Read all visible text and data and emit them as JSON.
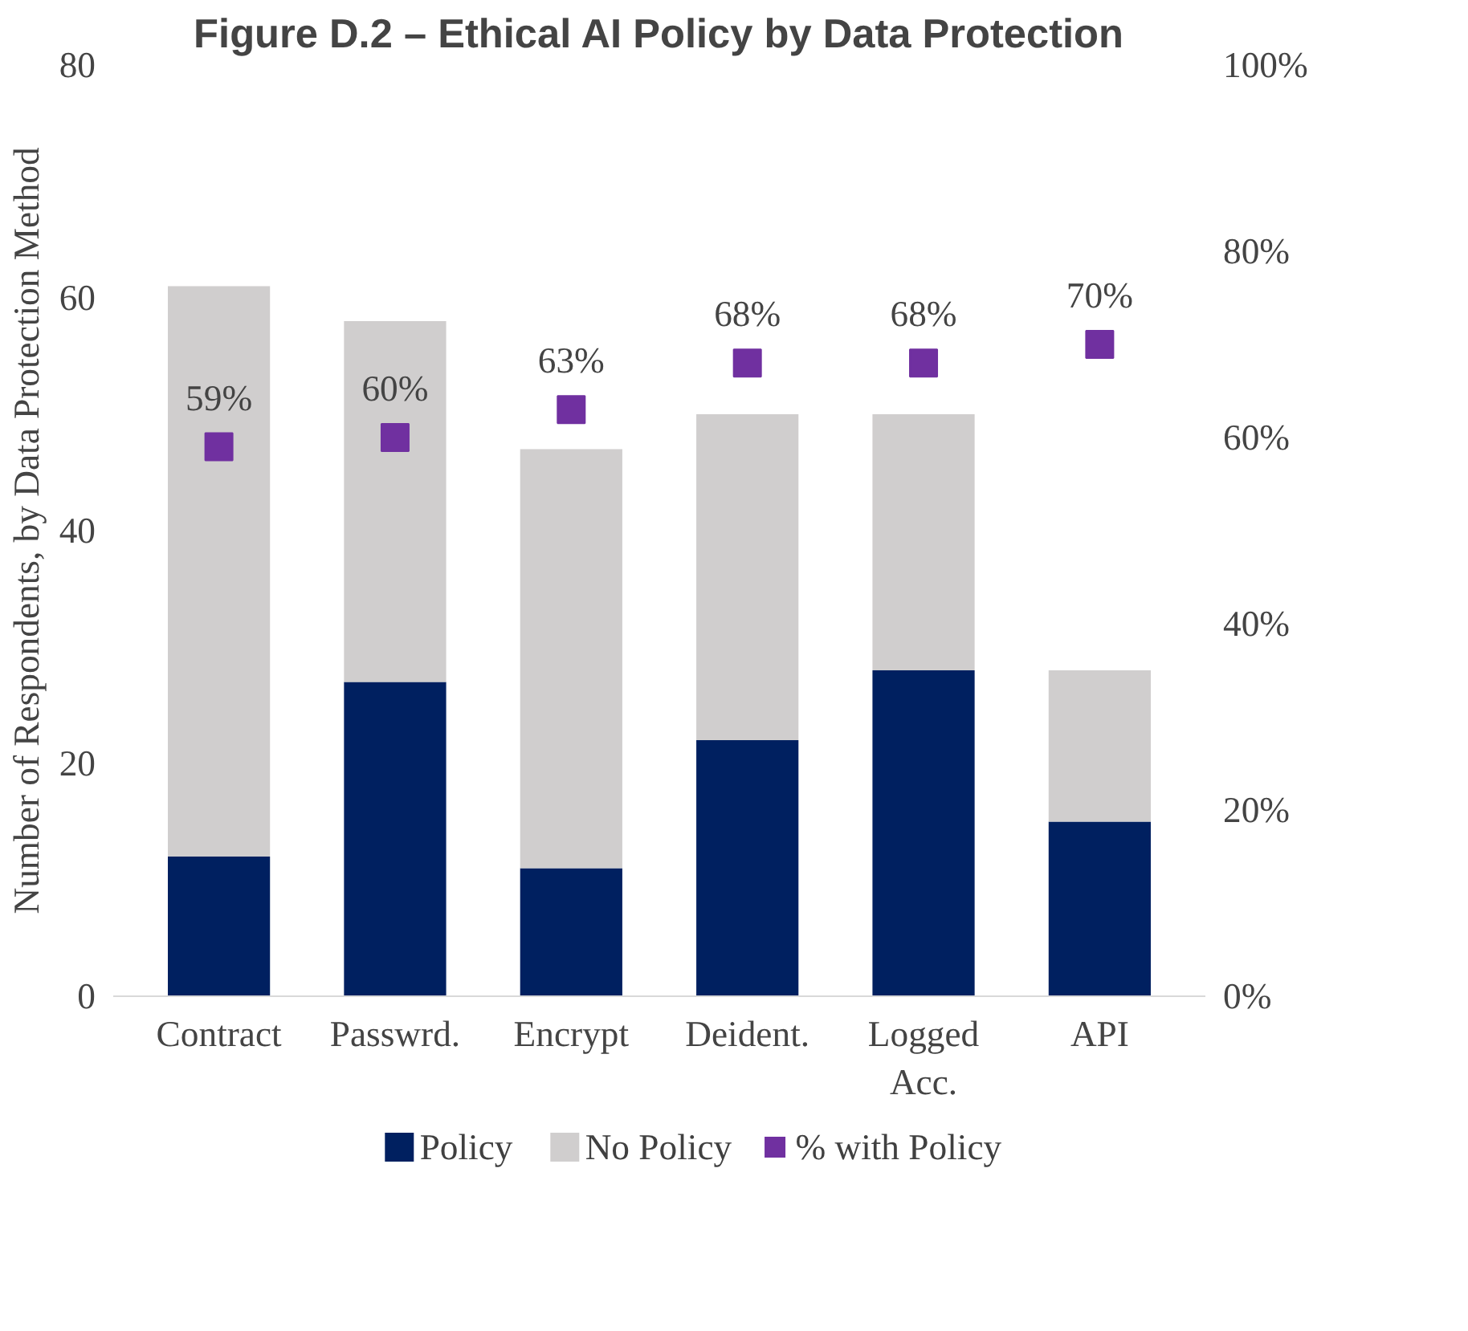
{
  "chart_data": {
    "type": "bar",
    "title": "Figure D.2 – Ethical AI Policy by Data Protection",
    "ylabel": "Number of Respondents, by Data Protection Method",
    "categories": [
      "Contract",
      "Passwrd.",
      "Encrypt",
      "Deident.",
      "Logged Acc.",
      "API"
    ],
    "stacked": true,
    "series": [
      {
        "name": "Policy",
        "color": "#002060",
        "values": [
          12,
          27,
          11,
          22,
          28,
          15
        ]
      },
      {
        "name": "No Policy",
        "color": "#d0cece",
        "values": [
          49,
          31,
          36,
          28,
          22,
          13
        ]
      },
      {
        "name": "% with Policy",
        "type": "scatter",
        "axis": "y2",
        "color": "#7030a0",
        "marker": "square",
        "value_labels": [
          "59%",
          "60%",
          "63%",
          "68%",
          "68%",
          "70%"
        ],
        "values": [
          59,
          60,
          63,
          68,
          68,
          70
        ]
      }
    ],
    "ylim": [
      0,
      80
    ],
    "yticks": [
      0,
      20,
      40,
      60,
      80
    ],
    "y2lim": [
      0,
      100
    ],
    "y2ticks": [
      {
        "value": 0,
        "label": "0%"
      },
      {
        "value": 20,
        "label": "20%"
      },
      {
        "value": 40,
        "label": "40%"
      },
      {
        "value": 60,
        "label": "60%"
      },
      {
        "value": 80,
        "label": "80%"
      },
      {
        "value": 100,
        "label": "100%"
      }
    ],
    "grid": false,
    "legend": "bottom"
  }
}
